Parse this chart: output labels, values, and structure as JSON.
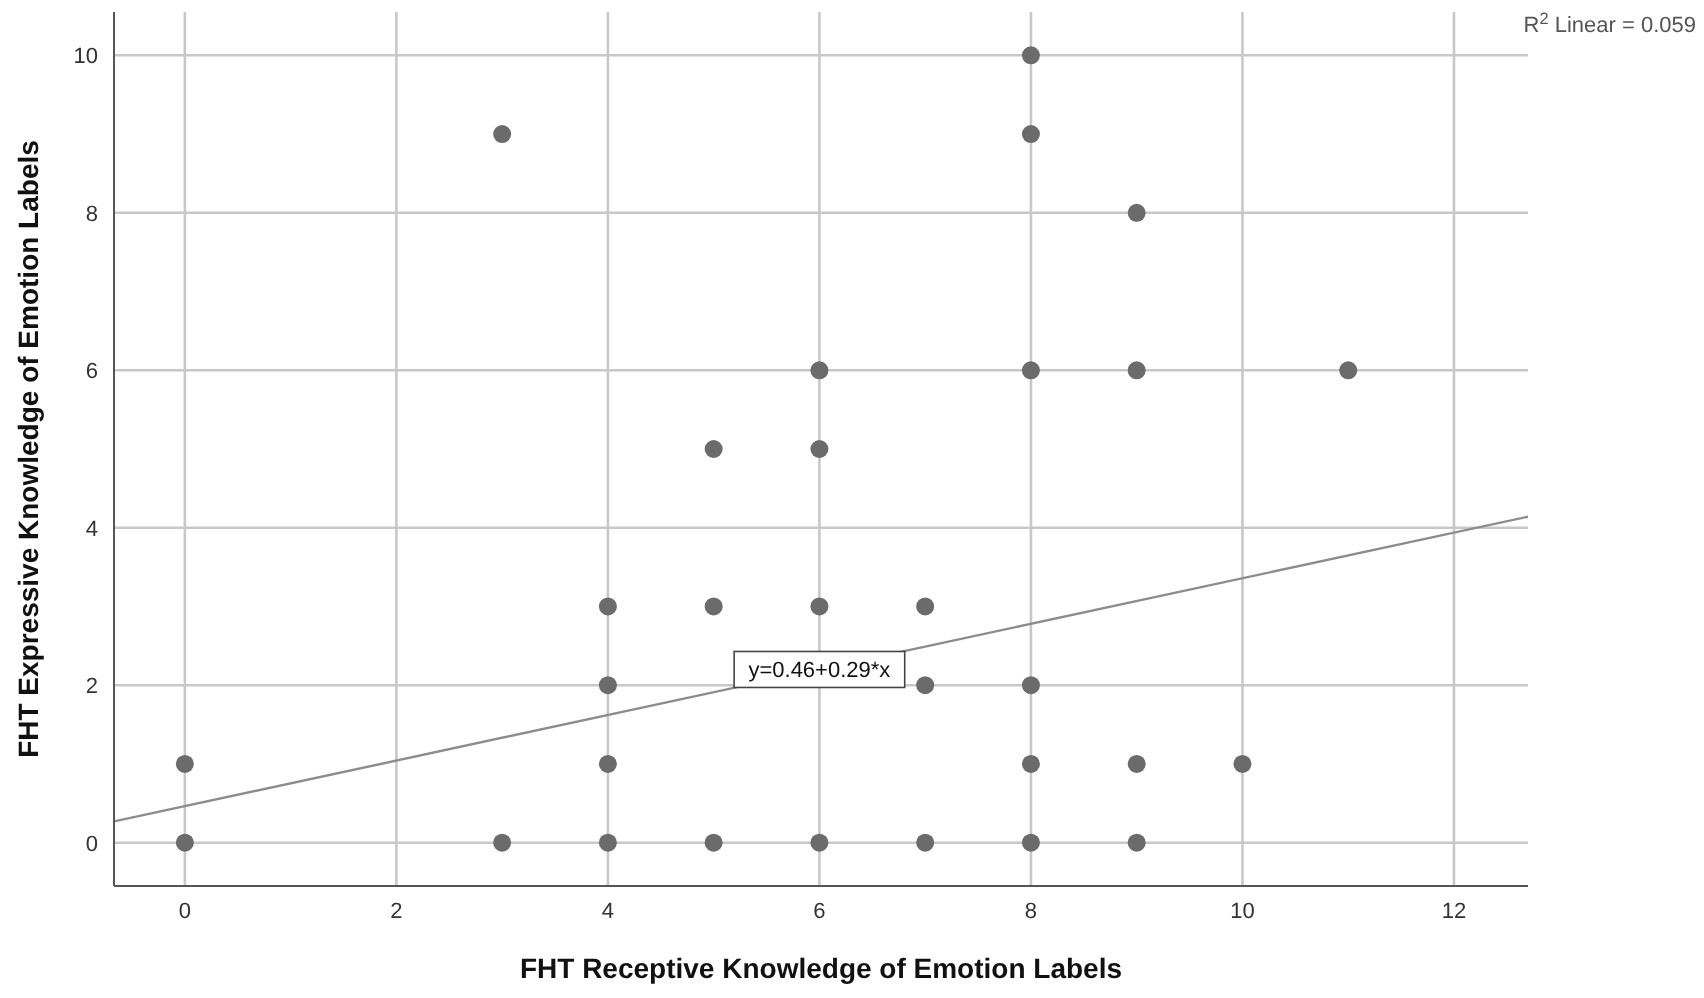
{
  "chart_data": {
    "type": "scatter",
    "xlabel": "FHT Receptive Knowledge of Emotion Labels",
    "ylabel": "FHT Expressive Knowledge of Emotion Labels",
    "annotations": [
      "R$^{2}$ Linear = 0.059",
      {
        "text": "y=0.46+0.29*x",
        "x": 6,
        "y": 2.2
      }
    ],
    "xlim": [
      -0.67,
      12.7
    ],
    "ylim": [
      -0.55,
      10.55
    ],
    "xticks": [
      0,
      2,
      4,
      6,
      8,
      10,
      12
    ],
    "yticks": [
      0,
      2,
      4,
      6,
      8,
      10
    ],
    "grid": true,
    "marker": "circle",
    "series": [
      {
        "color": "#6b6b6b",
        "x": [
          0,
          0,
          3,
          3,
          4,
          4,
          4,
          4,
          5,
          5,
          5,
          6,
          6,
          6,
          6,
          7,
          7,
          7,
          8,
          8,
          8,
          8,
          8,
          8,
          9,
          9,
          9,
          9,
          10,
          11
        ],
        "values": [
          1,
          0,
          9,
          0,
          3,
          2,
          1,
          0,
          5,
          3,
          0,
          6,
          5,
          3,
          0,
          3,
          2,
          0,
          10,
          9,
          6,
          2,
          1,
          0,
          8,
          6,
          1,
          0,
          1,
          6
        ]
      },
      {
        "type": "line",
        "color": "#8c8c8c",
        "marker": "none",
        "x": [
          -0.67,
          12.7
        ],
        "values": [
          0.27,
          4.14
        ]
      }
    ]
  }
}
